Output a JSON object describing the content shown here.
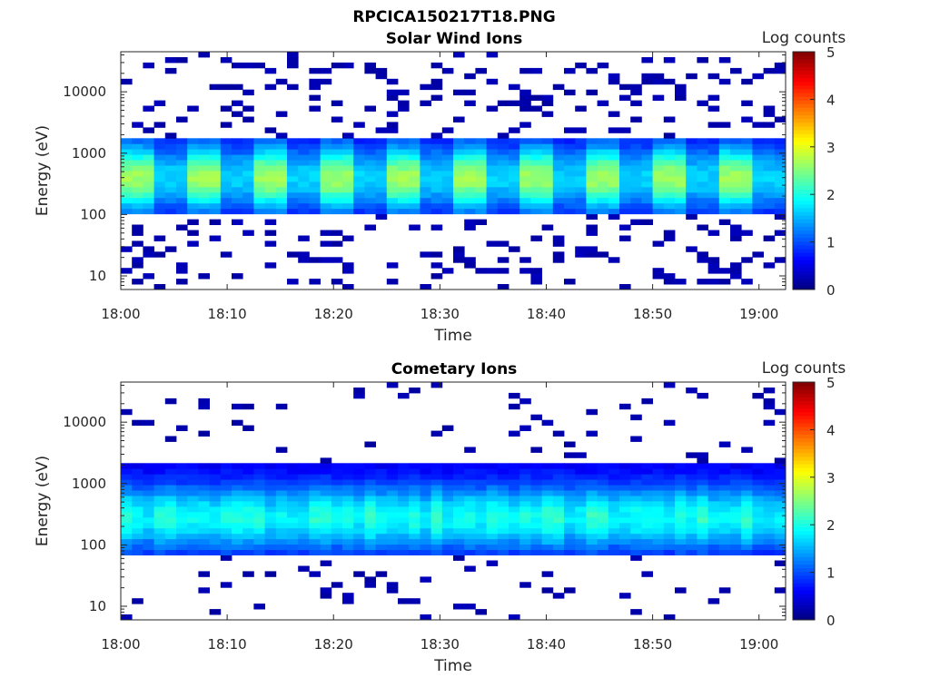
{
  "figure": {
    "title": "RPCICA150217T18.PNG"
  },
  "chart_data": [
    {
      "type": "heatmap",
      "title": "Solar Wind Ions",
      "xlabel": "Time",
      "ylabel": "Energy (eV)",
      "y_scale": "log",
      "ylim": [
        6,
        45000
      ],
      "x_ticks": [
        "18:00",
        "18:10",
        "18:20",
        "18:30",
        "18:40",
        "18:50",
        "19:00"
      ],
      "y_ticks": [
        "10",
        "100",
        "1000",
        "10000"
      ],
      "colorbar": {
        "label": "Log counts",
        "range": [
          0,
          5
        ],
        "ticks": [
          "0",
          "1",
          "2",
          "3",
          "4",
          "5"
        ],
        "colormap": "jet"
      },
      "band": {
        "low_eV": 100,
        "high_eV": 1600,
        "peak_eV": 400,
        "peak_log_counts": 2.2
      }
    },
    {
      "type": "heatmap",
      "title": "Cometary Ions",
      "xlabel": "Time",
      "ylabel": "Energy (eV)",
      "y_scale": "log",
      "ylim": [
        6,
        45000
      ],
      "x_ticks": [
        "18:00",
        "18:10",
        "18:20",
        "18:30",
        "18:40",
        "18:50",
        "19:00"
      ],
      "y_ticks": [
        "10",
        "100",
        "1000",
        "10000"
      ],
      "colorbar": {
        "label": "Log counts",
        "range": [
          0,
          5
        ],
        "ticks": [
          "0",
          "1",
          "2",
          "3",
          "4",
          "5"
        ],
        "colormap": "jet"
      },
      "band": {
        "low_eV": 70,
        "high_eV": 2000,
        "peak_eV": 280,
        "peak_log_counts": 1.7
      }
    }
  ]
}
